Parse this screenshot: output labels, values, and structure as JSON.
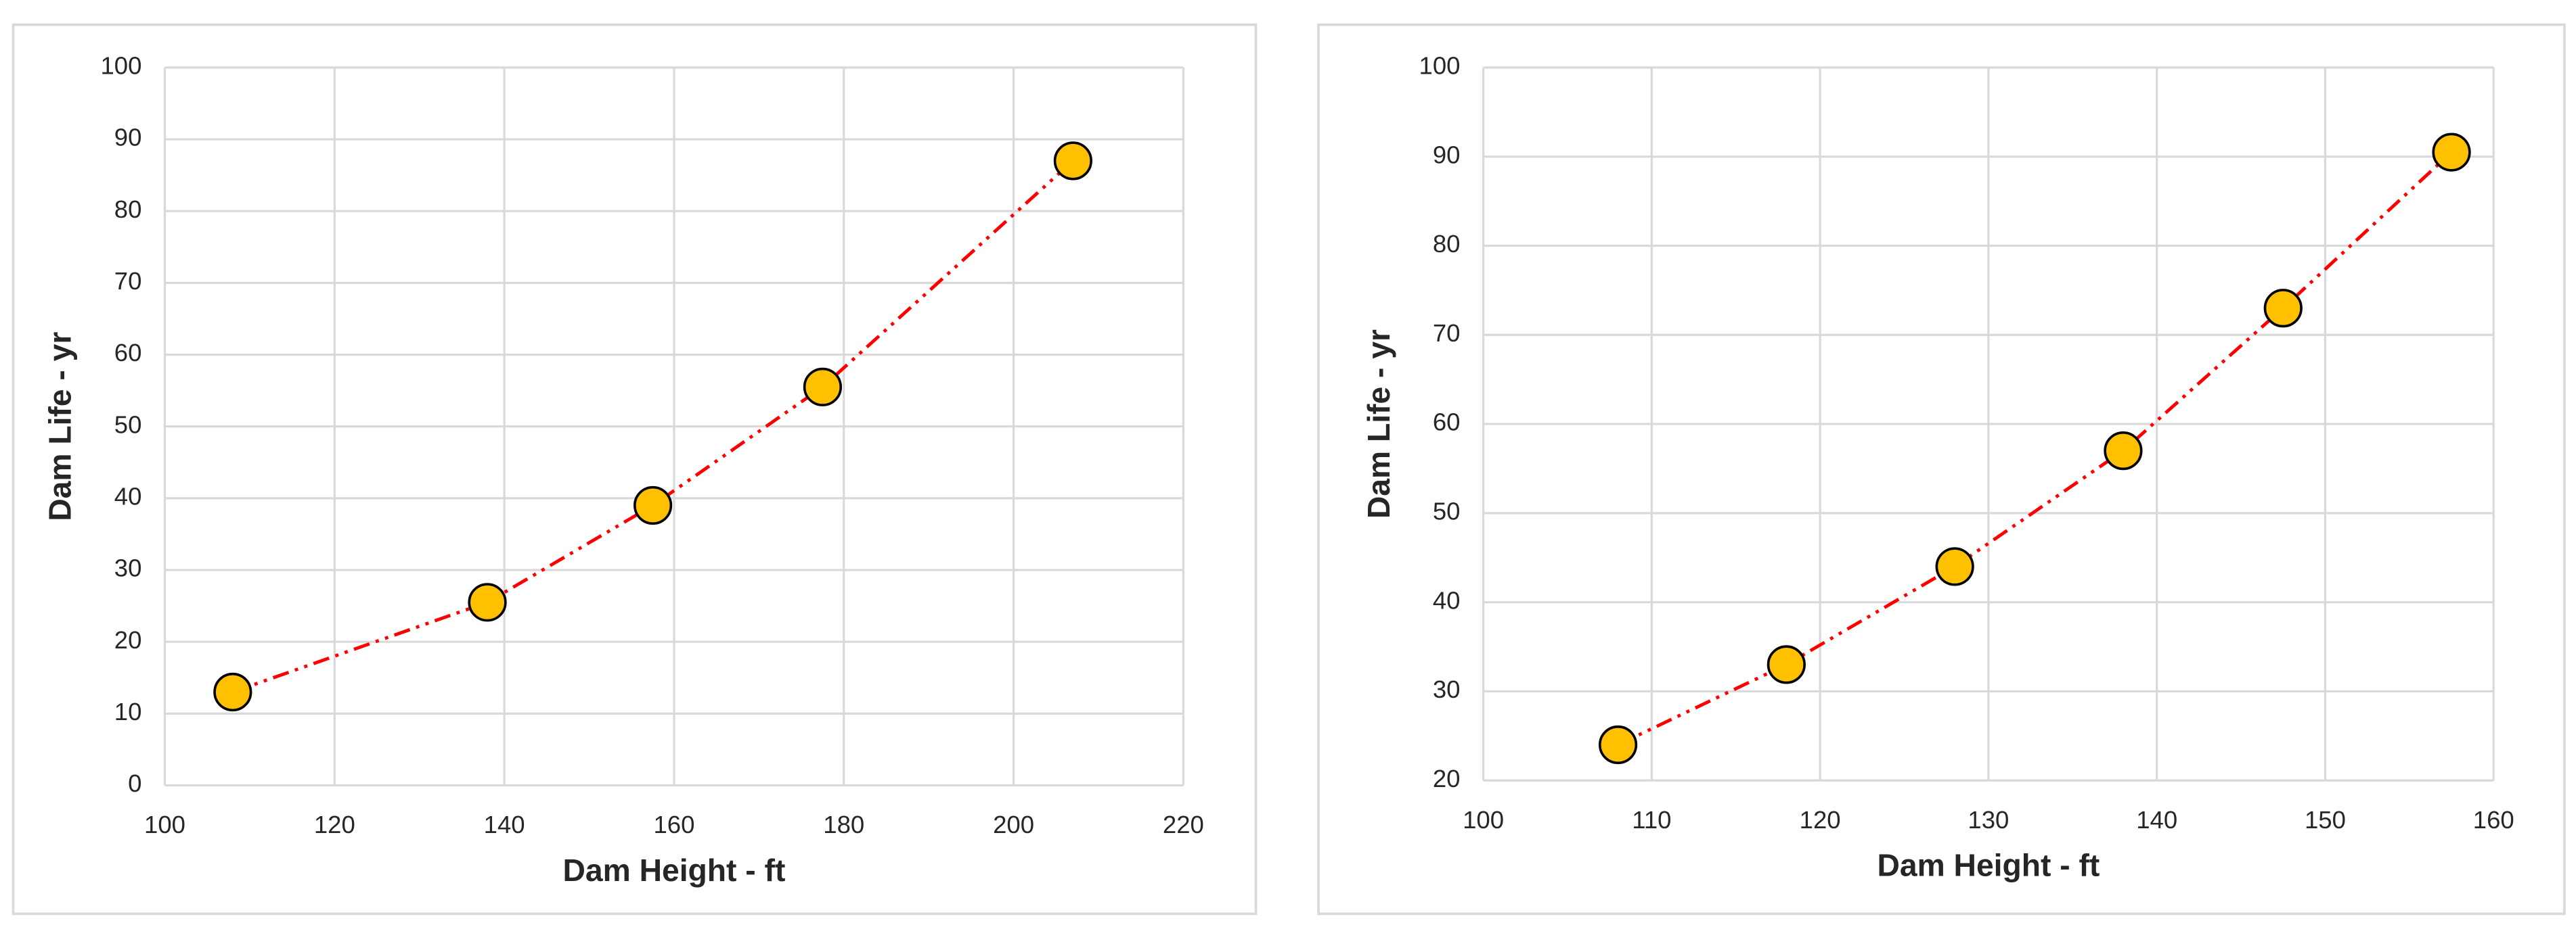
{
  "chart_data": [
    {
      "type": "scatter",
      "x": [
        108,
        138,
        157.5,
        177.5,
        207
      ],
      "values": [
        13,
        25.5,
        39,
        55.5,
        87
      ],
      "color": "#ffc000",
      "edge_color": "#000000",
      "trendline_color": "#ff0000",
      "xlabel": "Dam Height - ft",
      "ylabel": "Dam Life - yr",
      "xlim": [
        100,
        220
      ],
      "xticks": [
        100,
        120,
        140,
        160,
        180,
        200,
        220
      ],
      "ylim": [
        0,
        100
      ],
      "yticks": [
        0,
        10,
        20,
        30,
        40,
        50,
        60,
        70,
        80,
        90,
        100
      ],
      "grid": true
    },
    {
      "type": "scatter",
      "x": [
        108,
        118,
        128,
        138,
        147.5,
        157.5
      ],
      "values": [
        24,
        33,
        44,
        57,
        73,
        90.5
      ],
      "color": "#ffc000",
      "edge_color": "#000000",
      "trendline_color": "#ff0000",
      "xlabel": "Dam Height - ft",
      "ylabel": "Dam Life - yr",
      "xlim": [
        100,
        160
      ],
      "xticks": [
        100,
        110,
        120,
        130,
        140,
        150,
        160
      ],
      "ylim": [
        20,
        100
      ],
      "yticks": [
        20,
        30,
        40,
        50,
        60,
        70,
        80,
        90,
        100
      ],
      "grid": true
    }
  ]
}
